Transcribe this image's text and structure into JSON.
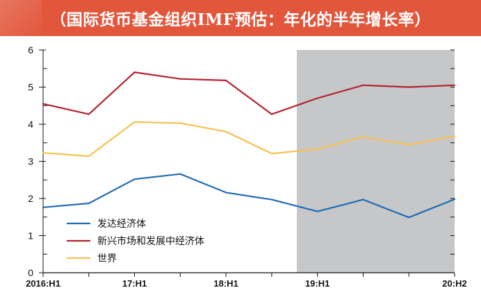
{
  "title": "（国际货币基金组织IMF预估：年化的半年增长率）",
  "chart_data": {
    "type": "line",
    "title": "（国际货币基金组织IMF预估：年化的半年增长率）",
    "xlabel": "",
    "ylabel": "",
    "ylim": [
      0,
      6
    ],
    "yticks": [
      0,
      1,
      2,
      3,
      4,
      5,
      6
    ],
    "x_count": 10,
    "x_labels": [
      {
        "index": 0,
        "label": "2016:H1"
      },
      {
        "index": 2,
        "label": "17:H1"
      },
      {
        "index": 4,
        "label": "18:H1"
      },
      {
        "index": 6,
        "label": "19:H1"
      },
      {
        "index": 9,
        "label": "20:H2"
      }
    ],
    "shaded_region": {
      "from_index": 5.55,
      "to_index": 9.0,
      "color": "#c6c7c9",
      "meaning": "forecast"
    },
    "series": [
      {
        "name": "发达经济体",
        "color": "#1f6bb6",
        "values": [
          1.76,
          1.87,
          2.52,
          2.66,
          2.16,
          1.97,
          1.65,
          1.97,
          1.49,
          1.98
        ]
      },
      {
        "name": "新兴市场和发展中经济体",
        "color": "#b5202e",
        "values": [
          4.55,
          4.27,
          5.4,
          5.22,
          5.18,
          4.27,
          4.7,
          5.05,
          5.0,
          5.05
        ]
      },
      {
        "name": "世界",
        "color": "#f5c04f",
        "values": [
          3.23,
          3.14,
          4.06,
          4.03,
          3.8,
          3.21,
          3.33,
          3.66,
          3.45,
          3.68
        ]
      }
    ],
    "legend_position": "bottom-left"
  }
}
